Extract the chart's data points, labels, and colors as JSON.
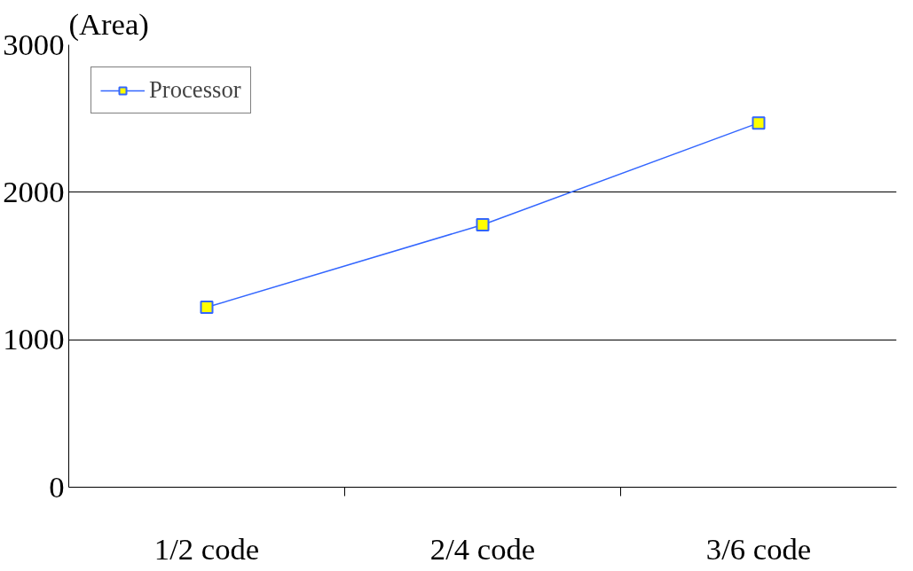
{
  "chart_data": {
    "type": "line",
    "ylabel": "(Area)",
    "categories": [
      "1/2 code",
      "2/4 code",
      "3/6 code"
    ],
    "series": [
      {
        "name": "Processor",
        "color": "#3366ff",
        "values": [
          1220,
          1780,
          2470
        ]
      }
    ],
    "ylim": [
      0,
      3000
    ],
    "yticks": [
      0,
      1000,
      2000,
      3000
    ],
    "grid": "y",
    "legend": "top left",
    "marker": "square",
    "line_style": "solid"
  }
}
